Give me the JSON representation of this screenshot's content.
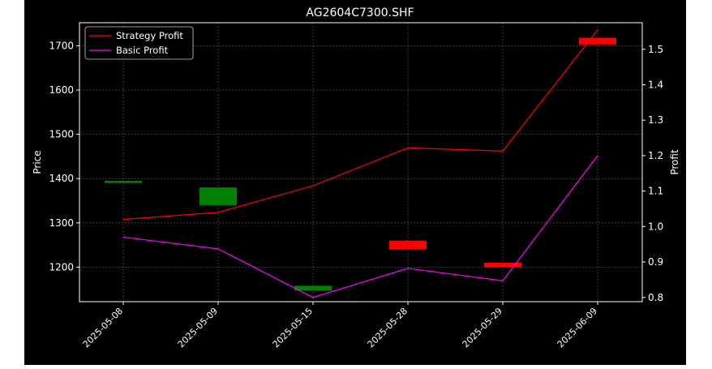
{
  "chart_data": {
    "type": "candlestick+line",
    "title": "AG2604C7300.SHF",
    "xlabel": "",
    "ylabel": "Price",
    "y2label": "Profit",
    "categories": [
      "2025-05-08",
      "2025-05-09",
      "2025-05-15",
      "2025-05-28",
      "2025-05-29",
      "2025-06-09"
    ],
    "ylim": [
      1122,
      1752
    ],
    "yticks": [
      1200,
      1300,
      1400,
      1500,
      1600,
      1700
    ],
    "y2lim": [
      0.788,
      1.575
    ],
    "y2ticks": [
      0.8,
      0.9,
      1.0,
      1.1,
      1.2,
      1.3,
      1.4,
      1.5
    ],
    "grid": true,
    "legend_position": "top-left",
    "candles": [
      {
        "x": "2025-05-08",
        "open": 1390,
        "close": 1395,
        "color": "#008000"
      },
      {
        "x": "2025-05-09",
        "open": 1340,
        "close": 1380,
        "color": "#008000"
      },
      {
        "x": "2025-05-15",
        "open": 1147,
        "close": 1158,
        "color": "#008000"
      },
      {
        "x": "2025-05-28",
        "open": 1260,
        "close": 1240,
        "color": "#ff0000"
      },
      {
        "x": "2025-05-29",
        "open": 1210,
        "close": 1200,
        "color": "#ff0000"
      },
      {
        "x": "2025-06-09",
        "open": 1718,
        "close": 1703,
        "color": "#ff0000"
      }
    ],
    "series": [
      {
        "name": "Strategy Profit",
        "color": "#ff0000",
        "axis": "right",
        "values": [
          1.02,
          1.04,
          1.115,
          1.222,
          1.213,
          1.555
        ]
      },
      {
        "name": "Basic Profit",
        "color": "#ff00ff",
        "axis": "right",
        "values": [
          0.97,
          0.937,
          0.8,
          0.882,
          0.847,
          1.2
        ]
      }
    ]
  }
}
